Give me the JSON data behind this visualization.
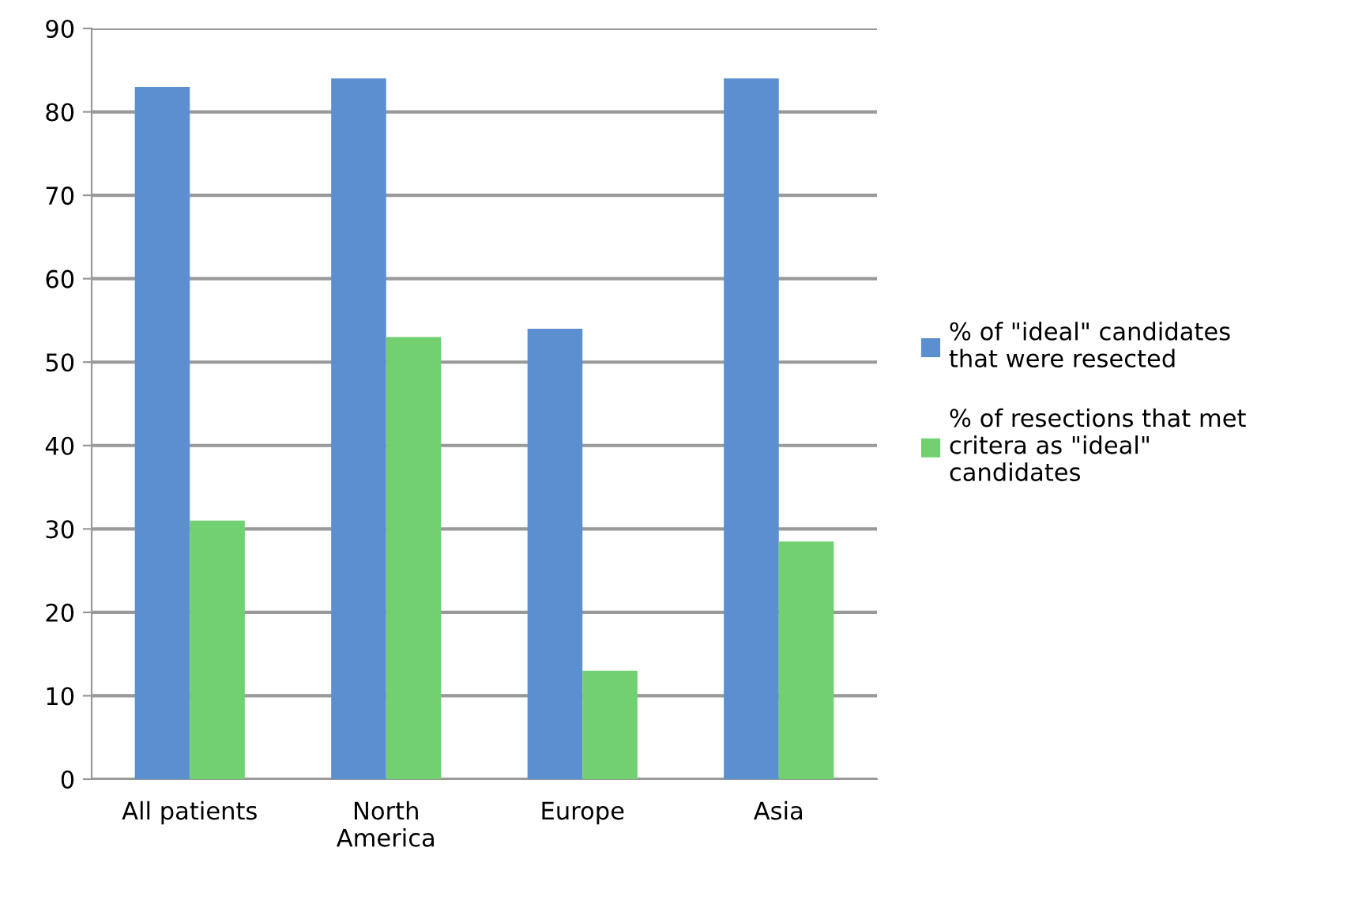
{
  "chart_data": {
    "type": "bar",
    "categories": [
      "All patients",
      "North\nAmerica",
      "Europe",
      "Asia"
    ],
    "series": [
      {
        "name": "% of \"ideal\" candidates\nthat were resected",
        "color": "#5b8fd0",
        "values": [
          83,
          84,
          54,
          84
        ]
      },
      {
        "name": "% of resections that met\ncritera as \"ideal\"\ncandidates",
        "color": "#72d070",
        "values": [
          31,
          53,
          13,
          28.5
        ]
      }
    ],
    "ylim": [
      0,
      90
    ],
    "yticks": [
      0,
      10,
      20,
      30,
      40,
      50,
      60,
      70,
      80,
      90
    ],
    "grid": "y",
    "legend": "right"
  }
}
